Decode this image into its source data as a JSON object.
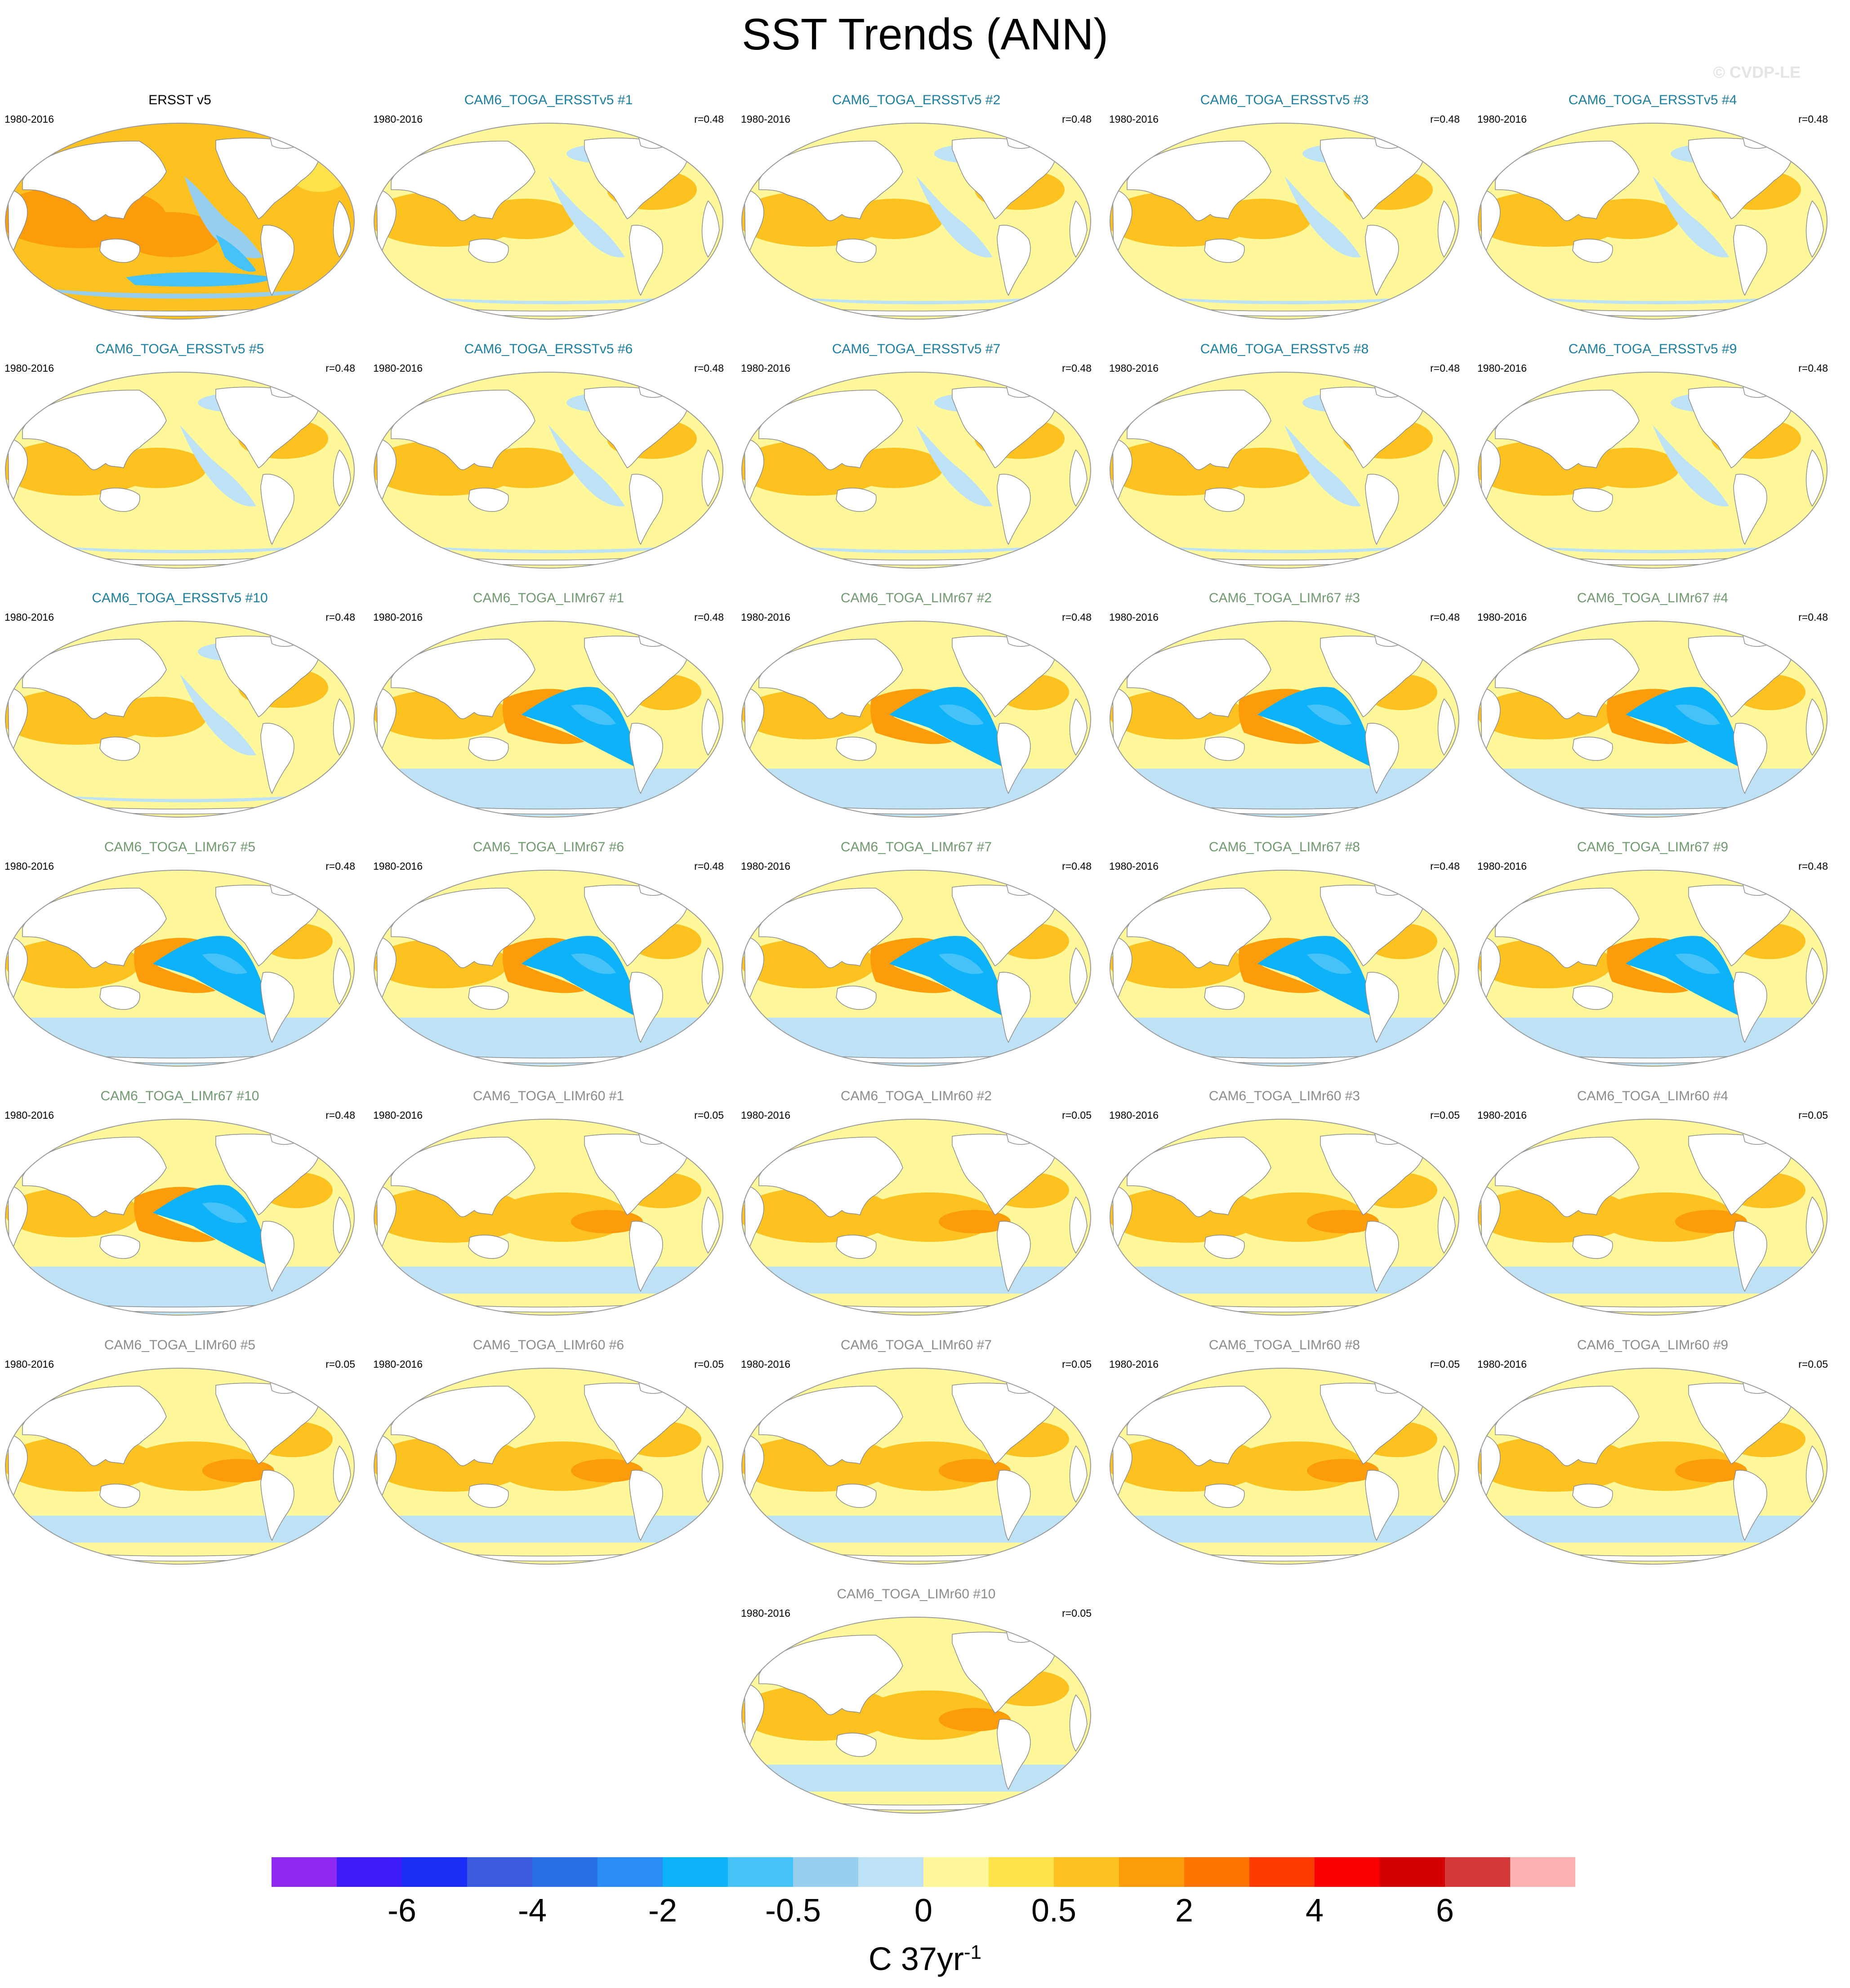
{
  "title": "SST Trends (ANN)",
  "credit": "© CVDP-LE",
  "period": "1980-2016",
  "groups": {
    "obs": "#000000",
    "ersst": "#1a7fa0",
    "limr67": "#6e9a6e",
    "limr60": "#8c8c8c"
  },
  "panels": [
    {
      "title": "ERSST v5",
      "group": "obs",
      "corr": "",
      "pattern": "obs"
    },
    {
      "title": "CAM6_TOGA_ERSSTv5 #1",
      "group": "ersst",
      "corr": "r=0.48",
      "pattern": "ersst"
    },
    {
      "title": "CAM6_TOGA_ERSSTv5 #2",
      "group": "ersst",
      "corr": "r=0.48",
      "pattern": "ersst"
    },
    {
      "title": "CAM6_TOGA_ERSSTv5 #3",
      "group": "ersst",
      "corr": "r=0.48",
      "pattern": "ersst"
    },
    {
      "title": "CAM6_TOGA_ERSSTv5 #4",
      "group": "ersst",
      "corr": "r=0.48",
      "pattern": "ersst"
    },
    {
      "title": "CAM6_TOGA_ERSSTv5 #5",
      "group": "ersst",
      "corr": "r=0.48",
      "pattern": "ersst"
    },
    {
      "title": "CAM6_TOGA_ERSSTv5 #6",
      "group": "ersst",
      "corr": "r=0.48",
      "pattern": "ersst"
    },
    {
      "title": "CAM6_TOGA_ERSSTv5 #7",
      "group": "ersst",
      "corr": "r=0.48",
      "pattern": "ersst"
    },
    {
      "title": "CAM6_TOGA_ERSSTv5 #8",
      "group": "ersst",
      "corr": "r=0.48",
      "pattern": "ersst"
    },
    {
      "title": "CAM6_TOGA_ERSSTv5 #9",
      "group": "ersst",
      "corr": "r=0.48",
      "pattern": "ersst"
    },
    {
      "title": "CAM6_TOGA_ERSSTv5 #10",
      "group": "ersst",
      "corr": "r=0.48",
      "pattern": "ersst"
    },
    {
      "title": "CAM6_TOGA_LIMr67 #1",
      "group": "limr67",
      "corr": "r=0.48",
      "pattern": "limr67"
    },
    {
      "title": "CAM6_TOGA_LIMr67 #2",
      "group": "limr67",
      "corr": "r=0.48",
      "pattern": "limr67"
    },
    {
      "title": "CAM6_TOGA_LIMr67 #3",
      "group": "limr67",
      "corr": "r=0.48",
      "pattern": "limr67"
    },
    {
      "title": "CAM6_TOGA_LIMr67 #4",
      "group": "limr67",
      "corr": "r=0.48",
      "pattern": "limr67"
    },
    {
      "title": "CAM6_TOGA_LIMr67 #5",
      "group": "limr67",
      "corr": "r=0.48",
      "pattern": "limr67"
    },
    {
      "title": "CAM6_TOGA_LIMr67 #6",
      "group": "limr67",
      "corr": "r=0.48",
      "pattern": "limr67"
    },
    {
      "title": "CAM6_TOGA_LIMr67 #7",
      "group": "limr67",
      "corr": "r=0.48",
      "pattern": "limr67"
    },
    {
      "title": "CAM6_TOGA_LIMr67 #8",
      "group": "limr67",
      "corr": "r=0.48",
      "pattern": "limr67"
    },
    {
      "title": "CAM6_TOGA_LIMr67 #9",
      "group": "limr67",
      "corr": "r=0.48",
      "pattern": "limr67"
    },
    {
      "title": "CAM6_TOGA_LIMr67 #10",
      "group": "limr67",
      "corr": "r=0.48",
      "pattern": "limr67"
    },
    {
      "title": "CAM6_TOGA_LIMr60 #1",
      "group": "limr60",
      "corr": "r=0.05",
      "pattern": "limr60"
    },
    {
      "title": "CAM6_TOGA_LIMr60 #2",
      "group": "limr60",
      "corr": "r=0.05",
      "pattern": "limr60"
    },
    {
      "title": "CAM6_TOGA_LIMr60 #3",
      "group": "limr60",
      "corr": "r=0.05",
      "pattern": "limr60"
    },
    {
      "title": "CAM6_TOGA_LIMr60 #4",
      "group": "limr60",
      "corr": "r=0.05",
      "pattern": "limr60"
    },
    {
      "title": "CAM6_TOGA_LIMr60 #5",
      "group": "limr60",
      "corr": "r=0.05",
      "pattern": "limr60"
    },
    {
      "title": "CAM6_TOGA_LIMr60 #6",
      "group": "limr60",
      "corr": "r=0.05",
      "pattern": "limr60"
    },
    {
      "title": "CAM6_TOGA_LIMr60 #7",
      "group": "limr60",
      "corr": "r=0.05",
      "pattern": "limr60"
    },
    {
      "title": "CAM6_TOGA_LIMr60 #8",
      "group": "limr60",
      "corr": "r=0.05",
      "pattern": "limr60"
    },
    {
      "title": "CAM6_TOGA_LIMr60 #9",
      "group": "limr60",
      "corr": "r=0.05",
      "pattern": "limr60"
    },
    {
      "title": "CAM6_TOGA_LIMr60 #10",
      "group": "limr60",
      "corr": "r=0.05",
      "pattern": "limr60"
    }
  ],
  "colorbar": {
    "colors": [
      "#8f28f0",
      "#3d1cf8",
      "#1a2ef5",
      "#3a5be0",
      "#2b6fe8",
      "#2a8cf5",
      "#0db2f8",
      "#45c2f7",
      "#98cfee",
      "#bde2f5",
      "#fff89b",
      "#fde24a",
      "#fdc21f",
      "#fd9c0a",
      "#fd7400",
      "#fd3c00",
      "#fa0000",
      "#d20000",
      "#d43838",
      "#fcb0b0"
    ],
    "labels": [
      "-6",
      "-4",
      "-2",
      "-0.5",
      "0",
      "0.5",
      "2",
      "4",
      "6"
    ],
    "label_boundaries": [
      2,
      4,
      6,
      8,
      10,
      12,
      14,
      16,
      18
    ],
    "unit_base": "C 37yr",
    "unit_sup": "-1"
  },
  "palette": {
    "land": "#ffffff",
    "coast": "#8a8a8a",
    "frame": "#9a9a9a",
    "pale_yellow": "#fff89b",
    "yellow": "#fde24a",
    "gold": "#fdc21f",
    "orange": "#fd9c0a",
    "deep_orange": "#fd7400",
    "pale_blue": "#bde2f5",
    "light_blue": "#98cfee",
    "blue": "#45c2f7",
    "cyan": "#0db2f8"
  }
}
